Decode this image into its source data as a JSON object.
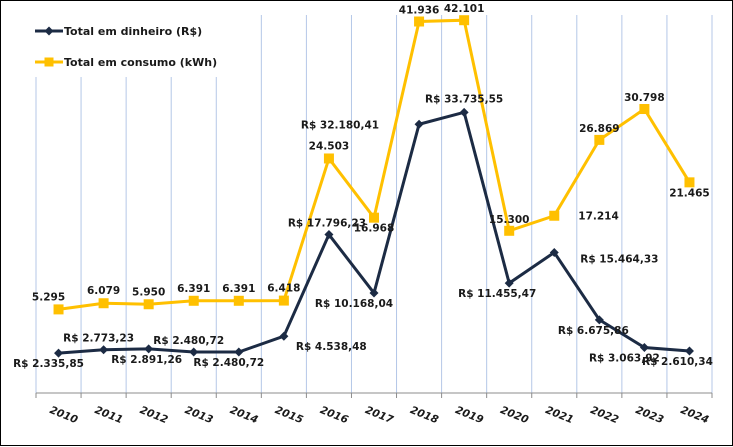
{
  "chart_data": {
    "type": "line",
    "title": "",
    "xlabel": "",
    "ylabel": "",
    "grid": "vertical",
    "legend_position": "top-left",
    "categories": [
      "2010",
      "2011",
      "2012",
      "2013",
      "2014",
      "2015",
      "2016",
      "2017",
      "2018",
      "2019",
      "2020",
      "2021",
      "2022",
      "2023",
      "2024"
    ],
    "series": [
      {
        "name": "Total em dinheiro (R$)",
        "color": "#1c2b44",
        "marker": "diamond",
        "values": [
          2335.85,
          2773.23,
          2891.26,
          2480.72,
          2480.72,
          4538.48,
          17796.23,
          10168.04,
          32180.41,
          33735.55,
          11455.47,
          15464.33,
          6675.86,
          3063.92,
          2610.34
        ],
        "labels": [
          "R$ 2.335,85",
          "R$ 2.773,23",
          "R$ 2.891,26",
          "R$ 2.480,72",
          "R$ 2.480,72",
          "R$ 4.538,48",
          "R$ 17.796,23",
          "R$ 10.168,04",
          "R$ 32.180,41",
          "R$ 33.735,55",
          "R$ 11.455,47",
          "R$ 15.464,33",
          "R$ 6.675,86",
          "R$ 3.063,92",
          "R$ 2.610,34"
        ]
      },
      {
        "name": "Total em consumo (kWh)",
        "color": "#ffc000",
        "marker": "square",
        "values": [
          5295,
          6079,
          5950,
          6391,
          6391,
          6418,
          24503,
          16968,
          41936,
          42101,
          15300,
          17214,
          26869,
          30798,
          21465
        ],
        "labels": [
          "5.295",
          "6.079",
          "5.950",
          "6.391",
          "6.391",
          "6.418",
          "24.503",
          "16.968",
          "41.936",
          "42.101",
          "15.300",
          "17.214",
          "26.869",
          "30.798",
          "21.465"
        ]
      }
    ]
  },
  "colors": {
    "grid": "#b4c7e7",
    "axis": "#8c8c8c",
    "border": "#000000"
  }
}
